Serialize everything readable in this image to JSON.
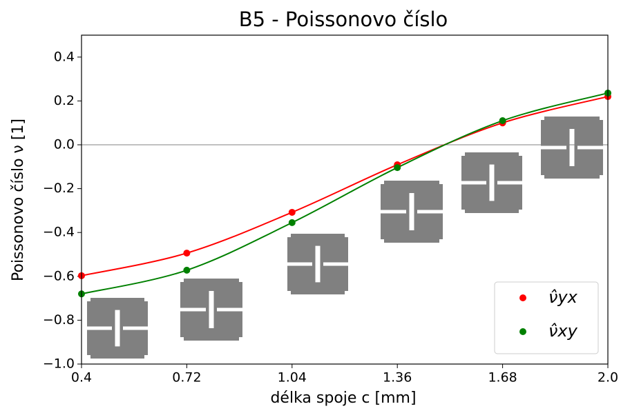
{
  "chart_data": {
    "type": "scatter",
    "title": "B5 - Poissonovo číslo",
    "x_label": "délka spoje c [mm]",
    "y_label": "Poissonovo číslo ν [1]",
    "x": [
      0.4,
      0.72,
      1.04,
      1.36,
      1.68,
      2.0
    ],
    "series": [
      {
        "name": "ν̂yx",
        "color": "#ff0000",
        "values": [
          -0.597,
          -0.494,
          -0.308,
          -0.091,
          0.1,
          0.22
        ]
      },
      {
        "name": "ν̂xy",
        "color": "#008000",
        "values": [
          -0.68,
          -0.572,
          -0.355,
          -0.104,
          0.11,
          0.236
        ]
      }
    ],
    "xlim": [
      0.4,
      2.0
    ],
    "ylim": [
      -1.0,
      0.5
    ],
    "xticks": [
      0.4,
      0.72,
      1.04,
      1.36,
      1.68,
      {
        "value": 2.0,
        "label": "2.0"
      }
    ],
    "yticks": [
      {
        "value": -1.0,
        "label": "−1.0"
      },
      {
        "value": -0.8,
        "label": "−0.8"
      },
      {
        "value": -0.6,
        "label": "−0.6"
      },
      {
        "value": -0.4,
        "label": "−0.4"
      },
      {
        "value": -0.2,
        "label": "−0.2"
      },
      {
        "value": 0.0,
        "label": "0.0"
      },
      0.2,
      0.4
    ],
    "hline": 0,
    "legend": "lower right"
  }
}
